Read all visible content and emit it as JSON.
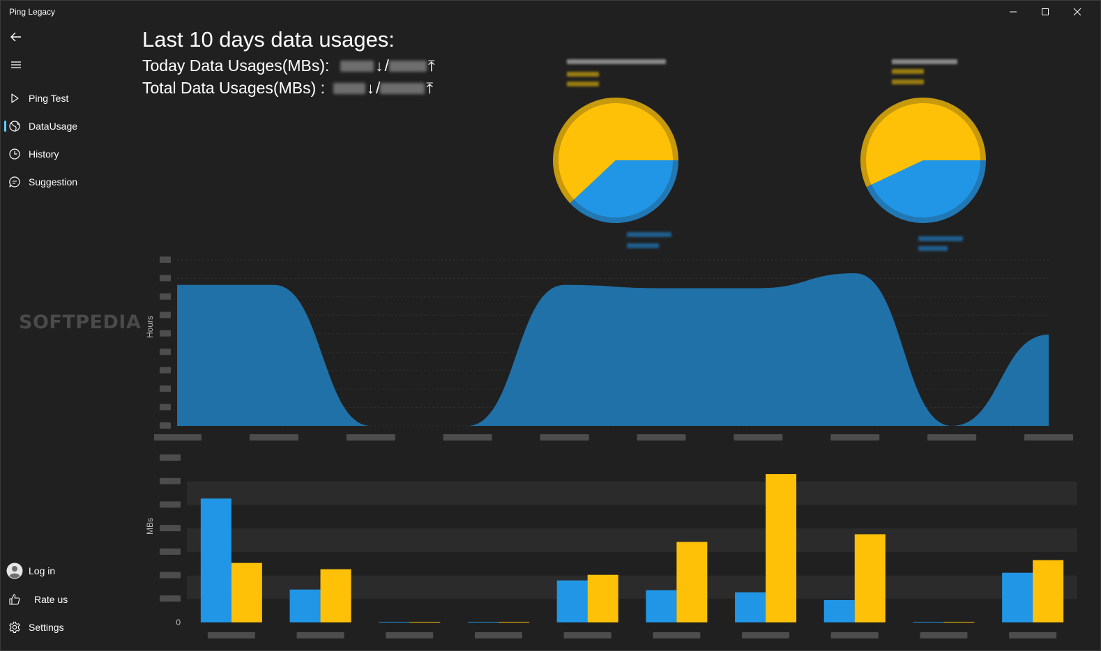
{
  "window": {
    "title": "Ping Legacy"
  },
  "nav": {
    "items": [
      {
        "label": "Ping Test",
        "icon": "play-icon"
      },
      {
        "label": "DataUsage",
        "icon": "globe-icon",
        "selected": true
      },
      {
        "label": "History",
        "icon": "clock-icon"
      },
      {
        "label": "Suggestion",
        "icon": "chat-icon"
      }
    ],
    "footer": [
      {
        "label": "Log in",
        "icon": "avatar-icon"
      },
      {
        "label": "Rate us",
        "icon": "thumbs-up-icon"
      },
      {
        "label": "Settings",
        "icon": "gear-icon"
      }
    ]
  },
  "watermark": "SOFTPEDIA",
  "header": {
    "title": "Last 10 days data usages:",
    "today_label": "Today Data Usages(MBs):",
    "total_label": "Total Data Usages(MBs)  :",
    "download_arrow": "↓",
    "separator": "/",
    "upload_arrow": "⤒"
  },
  "colors": {
    "download": "#2196e6",
    "upload": "#ffc107",
    "area": "#1f71a8",
    "background": "#202020"
  },
  "chart_data": [
    {
      "type": "pie",
      "series": [
        {
          "values": [
            62,
            38
          ]
        }
      ]
    },
    {
      "type": "pie",
      "series": [
        {
          "values": [
            57,
            43
          ]
        }
      ]
    },
    {
      "type": "area",
      "ylabel": "Hours",
      "x": [
        1,
        2,
        3,
        4,
        5,
        6,
        7,
        8,
        9,
        10
      ],
      "series": [
        {
          "values": [
            8.5,
            8.5,
            0,
            0,
            8.5,
            8.3,
            8.3,
            9.2,
            0,
            5.5
          ]
        }
      ],
      "ylim": [
        0,
        10
      ]
    },
    {
      "type": "bar",
      "ylabel": "MBs",
      "y_tick_zero": "0",
      "x": [
        1,
        2,
        3,
        4,
        5,
        6,
        7,
        8,
        9,
        10
      ],
      "series": [
        {
          "values": [
            177,
            47,
            0.5,
            0.5,
            60,
            46,
            43,
            32,
            0.5,
            71
          ]
        },
        {
          "values": [
            85,
            76,
            0.5,
            0.5,
            68,
            115,
            212,
            126,
            0.5,
            89
          ]
        }
      ],
      "ylim": [
        0,
        235
      ]
    }
  ]
}
